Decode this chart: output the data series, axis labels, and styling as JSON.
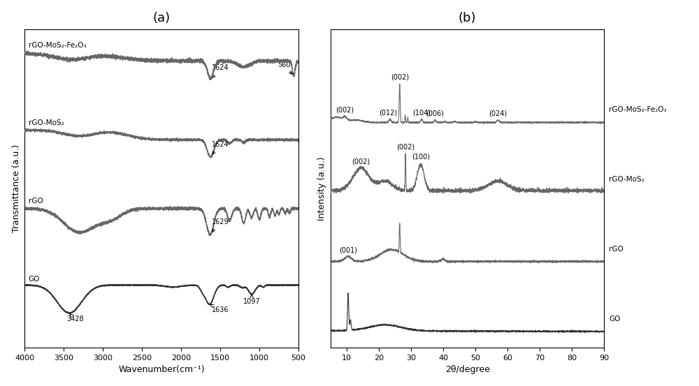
{
  "fig_width": 10.0,
  "fig_height": 5.53,
  "dpi": 100,
  "background_color": "#ffffff",
  "panel_a_title": "(a)",
  "panel_b_title": "(b)",
  "panel_a_xlabel": "Wavenumber(cm⁻¹)",
  "panel_a_ylabel": "Transmittance (a.u.)",
  "panel_b_xlabel": "2θ/degree",
  "panel_b_ylabel": "Intensity (a.u.)",
  "line_color_light": "#888888",
  "line_color_mid": "#666666",
  "line_color_dark": "#333333",
  "labels_a": [
    "rGO-MoS₂-Fe₂O₃",
    "rGO-MoS₂",
    "rGO",
    "GO"
  ],
  "labels_b": [
    "rGO-MoS₂-Fe₂O₃",
    "rGO-MoS₂",
    "rGO",
    "GO"
  ]
}
